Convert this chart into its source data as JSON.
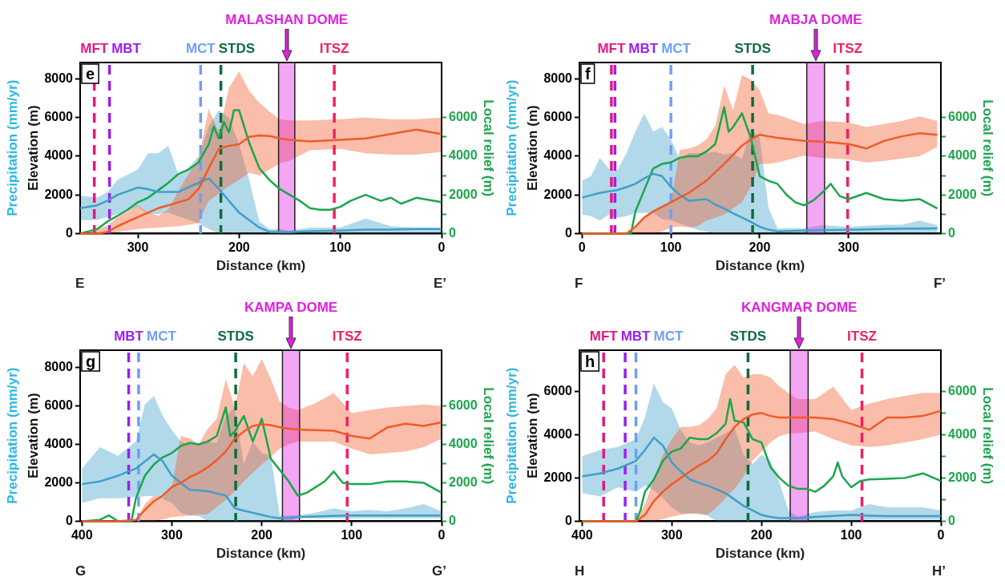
{
  "chart_data": [
    {
      "type": "line",
      "title": "e",
      "xlabel": "Distance (km)",
      "ylabel": "Elevation (m)",
      "y2label": "Local relief (m)",
      "annotations": [
        "Precipitation (mm/yr)",
        "E",
        "E’"
      ],
      "xlim": [
        357,
        0
      ],
      "xticks": [
        300,
        200,
        100,
        0
      ],
      "ylim": [
        0,
        8850
      ],
      "yticks": [
        0,
        2000,
        4000,
        6000,
        8000
      ],
      "y2lim": [
        0,
        8850
      ],
      "y2ticks": [
        0,
        {
          "value": 1000,
          "label": null
        },
        2000,
        {
          "value": 3000,
          "label": null
        },
        4000,
        {
          "value": 5000,
          "label": null
        },
        6000
      ],
      "marker": "none",
      "line_style": "solid",
      "ref_lines": [
        {
          "axis": "x",
          "value": 343,
          "label": "MFT",
          "color": "#e8177f",
          "line_style": "dashed"
        },
        {
          "axis": "x",
          "value": 328,
          "label": "MBT",
          "color": "#9a1ff2",
          "line_style": "dashed"
        },
        {
          "axis": "x",
          "value": 238,
          "label": "MCT",
          "color": "#6e9ff7",
          "line_style": "dashed"
        },
        {
          "axis": "x",
          "value": 218,
          "label": "STDS",
          "color": "#0e6b3c",
          "line_style": "dashed"
        },
        {
          "axis": "x",
          "value": 106,
          "label": "ITSZ",
          "color": "#f41d64",
          "line_style": "dashed"
        }
      ],
      "bands": [
        {
          "axis": "x",
          "from": 161,
          "to": 145,
          "label": "MALASHAN DOME",
          "color": "#e020e0"
        }
      ],
      "series": [
        {
          "color": "#f05a28",
          "axis": "y",
          "x": [
            357,
            340,
            330,
            320,
            300,
            290,
            280,
            270,
            260,
            250,
            240,
            230,
            220,
            210,
            200,
            190,
            180,
            170,
            160,
            150,
            130,
            100,
            75,
            50,
            25,
            0
          ],
          "values": [
            0,
            0,
            80,
            380,
            850,
            1080,
            1310,
            1460,
            1620,
            1770,
            2310,
            3380,
            4380,
            4540,
            4620,
            5000,
            5080,
            5050,
            4920,
            4850,
            4770,
            4850,
            4920,
            5150,
            5380,
            5150
          ],
          "lower": [
            0,
            0,
            0,
            80,
            230,
            280,
            310,
            350,
            380,
            450,
            540,
            1690,
            2080,
            2460,
            2770,
            3150,
            3000,
            3310,
            3620,
            3770,
            4310,
            4380,
            4150,
            4080,
            4080,
            4230
          ],
          "upper": [
            0,
            230,
            400,
            850,
            1460,
            1080,
            920,
            1230,
            2230,
            3080,
            3850,
            6460,
            5230,
            7540,
            8380,
            7380,
            6770,
            6310,
            5920,
            5850,
            5850,
            5920,
            6000,
            5920,
            5920,
            6000
          ]
        },
        {
          "color": "#3f9fc8",
          "axis": "y",
          "x": [
            357,
            340,
            330,
            320,
            300,
            290,
            280,
            270,
            260,
            250,
            240,
            230,
            220,
            210,
            200,
            190,
            180,
            170,
            160,
            150,
            130,
            100,
            75,
            50,
            25,
            0
          ],
          "values": [
            1310,
            1460,
            1700,
            2000,
            2380,
            2300,
            2150,
            2150,
            2150,
            2400,
            2620,
            2850,
            2310,
            1690,
            1080,
            690,
            310,
            80,
            80,
            80,
            120,
            150,
            200,
            200,
            230,
            230
          ],
          "lower": [
            690,
            700,
            850,
            1000,
            1400,
            1000,
            1000,
            1100,
            900,
            700,
            540,
            230,
            0,
            0,
            0,
            0,
            0,
            0,
            0,
            0,
            0,
            0,
            0,
            0,
            0,
            0
          ],
          "upper": [
            1970,
            1850,
            2150,
            2770,
            3310,
            4150,
            4150,
            4540,
            3080,
            3380,
            4000,
            5540,
            6380,
            6000,
            4620,
            2770,
            620,
            230,
            230,
            150,
            310,
            310,
            770,
            380,
            310,
            310
          ]
        },
        {
          "color": "#1aa64b",
          "axis": "y2",
          "x": [
            357,
            340,
            330,
            320,
            310,
            300,
            290,
            280,
            270,
            260,
            250,
            240,
            230,
            225,
            220,
            215,
            210,
            205,
            200,
            195,
            190,
            180,
            170,
            160,
            150,
            140,
            130,
            120,
            110,
            100,
            90,
            75,
            60,
            50,
            40,
            25,
            0
          ],
          "values": [
            0,
            230,
            620,
            920,
            1230,
            1620,
            1850,
            2230,
            2620,
            3080,
            3310,
            3690,
            4620,
            5540,
            4920,
            5770,
            5230,
            6380,
            6380,
            5540,
            4690,
            3380,
            2770,
            2310,
            2000,
            1690,
            1310,
            1230,
            1230,
            1380,
            1690,
            2000,
            1690,
            1850,
            1540,
            1850,
            1620
          ]
        }
      ]
    },
    {
      "type": "line",
      "title": "f",
      "xlabel": "Distance (km)",
      "ylabel": "Elevation (m)",
      "y2label": "Local relief (m)",
      "annotations": [
        "Precipitation (mm/yr)",
        "F",
        "F’"
      ],
      "xlim": [
        -3,
        404
      ],
      "xticks": [
        0,
        100,
        200,
        300
      ],
      "ylim": [
        0,
        8850
      ],
      "yticks": [
        0,
        2000,
        4000,
        6000,
        8000
      ],
      "y2lim": [
        0,
        8850
      ],
      "y2ticks": [
        0,
        {
          "value": 1000,
          "label": null
        },
        2000,
        {
          "value": 3000,
          "label": null
        },
        4000,
        {
          "value": 5000,
          "label": null
        },
        6000
      ],
      "marker": "none",
      "line_style": "solid",
      "ref_lines": [
        {
          "axis": "x",
          "value": 33,
          "label": "MFT",
          "color": "#e8177f",
          "line_style": "dashed"
        },
        {
          "axis": "x",
          "value": 37,
          "label": "MBT",
          "color": "#9a1ff2",
          "line_style": "dashed"
        },
        {
          "axis": "x",
          "value": 100,
          "label": "MCT",
          "color": "#6e9ff7",
          "line_style": "dashed"
        },
        {
          "axis": "x",
          "value": 192,
          "label": "STDS",
          "color": "#0e6b3c",
          "line_style": "dashed"
        },
        {
          "axis": "x",
          "value": 299,
          "label": "ITSZ",
          "color": "#f41d64",
          "line_style": "dashed"
        }
      ],
      "bands": [
        {
          "axis": "x",
          "from": 253,
          "to": 273,
          "label": "MABJA DOME",
          "color": "#e020e0"
        }
      ],
      "series": [
        {
          "color": "#f05a28",
          "axis": "y",
          "x": [
            0,
            10,
            20,
            30,
            40,
            50,
            60,
            70,
            80,
            90,
            100,
            110,
            120,
            130,
            140,
            150,
            160,
            170,
            180,
            190,
            200,
            210,
            220,
            250,
            270,
            300,
            320,
            340,
            360,
            380,
            400
          ],
          "values": [
            0,
            0,
            0,
            0,
            0,
            0,
            350,
            830,
            1140,
            1380,
            1620,
            1860,
            2100,
            2420,
            2730,
            3170,
            3600,
            4080,
            4550,
            4870,
            5110,
            5030,
            4950,
            4800,
            4750,
            4630,
            4400,
            4790,
            5030,
            5190,
            5110
          ],
          "lower": [
            0,
            0,
            0,
            0,
            0,
            0,
            0,
            0,
            0,
            100,
            320,
            370,
            320,
            380,
            670,
            820,
            980,
            1300,
            1620,
            2410,
            3600,
            3600,
            3680,
            4030,
            3920,
            3840,
            3680,
            3760,
            3880,
            4000,
            4480
          ],
          "upper": [
            0,
            0,
            0,
            0,
            0,
            0,
            350,
            830,
            1140,
            1380,
            1620,
            4320,
            4400,
            4550,
            4870,
            5590,
            7650,
            6380,
            8200,
            7970,
            7410,
            6220,
            6140,
            5670,
            5820,
            5750,
            5510,
            5670,
            5820,
            6060,
            5820
          ]
        },
        {
          "color": "#3f9fc8",
          "axis": "y",
          "x": [
            0,
            10,
            20,
            30,
            40,
            50,
            60,
            70,
            80,
            90,
            100,
            110,
            120,
            130,
            140,
            150,
            160,
            170,
            180,
            190,
            200,
            210,
            220,
            250,
            270,
            300,
            320,
            340,
            360,
            380,
            400
          ],
          "values": [
            1860,
            1980,
            2100,
            2180,
            2250,
            2400,
            2570,
            2850,
            3090,
            2970,
            2410,
            2000,
            1700,
            1740,
            1780,
            1500,
            1300,
            1050,
            830,
            600,
            350,
            200,
            110,
            150,
            170,
            190,
            210,
            230,
            250,
            260,
            270
          ],
          "lower": [
            980,
            900,
            670,
            980,
            830,
            900,
            1060,
            1060,
            1060,
            750,
            670,
            510,
            350,
            190,
            100,
            0,
            0,
            0,
            0,
            0,
            0,
            0,
            0,
            0,
            0,
            0,
            0,
            0,
            0,
            0,
            30
          ],
          "upper": [
            2730,
            2970,
            3920,
            3360,
            3290,
            4160,
            5270,
            6220,
            5270,
            5510,
            4870,
            3840,
            4160,
            4160,
            4160,
            4240,
            4080,
            4160,
            3840,
            5430,
            4950,
            1300,
            270,
            270,
            430,
            350,
            400,
            450,
            450,
            670,
            430
          ]
        },
        {
          "color": "#1aa64b",
          "axis": "y2",
          "x": [
            0,
            55,
            60,
            70,
            80,
            90,
            100,
            110,
            120,
            130,
            140,
            150,
            160,
            165,
            170,
            180,
            190,
            200,
            210,
            220,
            230,
            240,
            250,
            260,
            270,
            280,
            290,
            300,
            320,
            340,
            360,
            380,
            400
          ],
          "values": [
            0,
            0,
            1140,
            2250,
            3360,
            3600,
            3680,
            3920,
            4000,
            4000,
            4240,
            4630,
            6540,
            5270,
            5510,
            6220,
            4950,
            2970,
            2730,
            2570,
            2020,
            1620,
            1460,
            1700,
            2100,
            2570,
            1940,
            1780,
            2100,
            1780,
            1700,
            1780,
            1300
          ]
        }
      ]
    },
    {
      "type": "line",
      "title": "g",
      "xlabel": "Distance (km)",
      "ylabel": "Elevation (m)",
      "y2label": "Local relief (m)",
      "annotations": [
        "Precipitation (mm/yr)",
        "G",
        "G’"
      ],
      "xlim": [
        402,
        0
      ],
      "xticks": [
        400,
        300,
        200,
        100,
        0
      ],
      "ylim": [
        0,
        8900
      ],
      "yticks": [
        0,
        2000,
        4000,
        6000,
        8000
      ],
      "y2lim": [
        0,
        8900
      ],
      "y2ticks": [
        0,
        {
          "value": 1000,
          "label": null
        },
        2000,
        {
          "value": 3000,
          "label": null
        },
        4000,
        {
          "value": 5000,
          "label": null
        },
        6000
      ],
      "marker": "none",
      "line_style": "solid",
      "ref_lines": [
        {
          "axis": "x",
          "value": 348,
          "label": "MBT",
          "color": "#9a1ff2",
          "line_style": "dashed"
        },
        {
          "axis": "x",
          "value": 337,
          "label": "MCT",
          "color": "#6e9ff7",
          "line_style": "dashed"
        },
        {
          "axis": "x",
          "value": 229,
          "label": "STDS",
          "color": "#0e6b3c",
          "line_style": "dashed"
        },
        {
          "axis": "x",
          "value": 105,
          "label": "ITSZ",
          "color": "#f41d64",
          "line_style": "dashed"
        }
      ],
      "bands": [
        {
          "axis": "x",
          "from": 177,
          "to": 158,
          "label": "KAMPA DOME",
          "color": "#e020e0"
        }
      ],
      "series": [
        {
          "color": "#f05a28",
          "axis": "y",
          "x": [
            400,
            380,
            360,
            340,
            330,
            320,
            310,
            300,
            290,
            280,
            270,
            260,
            250,
            240,
            230,
            220,
            210,
            200,
            190,
            180,
            170,
            160,
            140,
            120,
            100,
            80,
            60,
            40,
            20,
            0
          ],
          "values": [
            0,
            0,
            0,
            70,
            590,
            1040,
            1330,
            1780,
            2000,
            2300,
            2520,
            2810,
            3180,
            3630,
            4300,
            4670,
            4960,
            5040,
            5000,
            4890,
            4810,
            4770,
            4740,
            4710,
            4440,
            4300,
            4890,
            5070,
            4960,
            5150
          ],
          "lower": [
            0,
            0,
            0,
            0,
            0,
            0,
            100,
            220,
            260,
            300,
            340,
            370,
            740,
            1110,
            1560,
            2070,
            2520,
            2960,
            3330,
            3780,
            4000,
            4150,
            4150,
            4150,
            3780,
            3480,
            3550,
            3630,
            3850,
            4300
          ],
          "upper": [
            0,
            0,
            0,
            70,
            890,
            1330,
            1190,
            1780,
            4440,
            4300,
            4000,
            4810,
            5330,
            7410,
            5920,
            8220,
            7550,
            8440,
            7410,
            6220,
            5920,
            5780,
            6150,
            6670,
            5630,
            5780,
            5920,
            6000,
            6070,
            6000
          ]
        },
        {
          "color": "#3f9fc8",
          "axis": "y",
          "x": [
            400,
            380,
            360,
            340,
            330,
            320,
            310,
            300,
            290,
            280,
            270,
            260,
            250,
            240,
            230,
            220,
            210,
            200,
            190,
            180,
            170,
            160,
            140,
            120,
            100,
            80,
            60,
            40,
            20,
            0
          ],
          "values": [
            1930,
            2070,
            2370,
            2740,
            3110,
            3480,
            3110,
            2370,
            2000,
            1630,
            1600,
            1560,
            1450,
            1330,
            670,
            550,
            440,
            330,
            220,
            150,
            180,
            220,
            250,
            280,
            300,
            300,
            300,
            300,
            300,
            300
          ],
          "lower": [
            960,
            1190,
            1190,
            1260,
            1300,
            1330,
            1150,
            960,
            440,
            300,
            270,
            0,
            0,
            0,
            0,
            0,
            0,
            0,
            0,
            0,
            0,
            150,
            150,
            150,
            150,
            150,
            150,
            150,
            150,
            150
          ],
          "upper": [
            2740,
            3850,
            3410,
            4150,
            6070,
            6520,
            5480,
            4740,
            4150,
            4000,
            4000,
            4150,
            4070,
            5480,
            5920,
            2960,
            4150,
            3550,
            3410,
            300,
            300,
            300,
            440,
            670,
            520,
            590,
            520,
            670,
            890,
            520
          ]
        },
        {
          "color": "#1aa64b",
          "axis": "y2",
          "x": [
            400,
            380,
            370,
            360,
            345,
            340,
            330,
            320,
            310,
            300,
            290,
            280,
            270,
            260,
            250,
            240,
            235,
            230,
            220,
            210,
            200,
            190,
            180,
            170,
            160,
            150,
            130,
            120,
            110,
            100,
            80,
            60,
            40,
            20,
            0
          ],
          "values": [
            0,
            70,
            300,
            0,
            0,
            1190,
            2370,
            2960,
            3330,
            3550,
            3920,
            4070,
            4000,
            4150,
            4440,
            5920,
            4440,
            4670,
            5480,
            4150,
            5330,
            3260,
            2670,
            2070,
            1330,
            1480,
            2070,
            2590,
            2000,
            1930,
            1930,
            2070,
            2070,
            2000,
            1480
          ]
        }
      ]
    },
    {
      "type": "line",
      "title": "h",
      "xlabel": "Distance (km)",
      "ylabel": "Elevation (m)",
      "y2label": "Local relief (m)",
      "annotations": [
        "Precipitation (mm/yr)",
        "H",
        "H’"
      ],
      "xlim": [
        403,
        0
      ],
      "xticks": [
        400,
        300,
        200,
        100,
        0
      ],
      "ylim": [
        0,
        7900
      ],
      "yticks": [
        0,
        2000,
        4000,
        6000
      ],
      "y2lim": [
        0,
        7900
      ],
      "y2ticks": [
        0,
        {
          "value": 1000,
          "label": null
        },
        2000,
        {
          "value": 3000,
          "label": null
        },
        4000,
        {
          "value": 5000,
          "label": null
        },
        6000
      ],
      "marker": "none",
      "line_style": "solid",
      "ref_lines": [
        {
          "axis": "x",
          "value": 376,
          "label": "MFT",
          "color": "#e8177f",
          "line_style": "dashed"
        },
        {
          "axis": "x",
          "value": 352,
          "label": "MBT",
          "color": "#9a1ff2",
          "line_style": "dashed"
        },
        {
          "axis": "x",
          "value": 340,
          "label": "MCT",
          "color": "#6e9ff7",
          "line_style": "dashed"
        },
        {
          "axis": "x",
          "value": 215,
          "label": "STDS",
          "color": "#0e6b3c",
          "line_style": "dashed"
        },
        {
          "axis": "x",
          "value": 88,
          "label": "ITSZ",
          "color": "#f41d64",
          "line_style": "dashed"
        }
      ],
      "bands": [
        {
          "axis": "x",
          "from": 168,
          "to": 148,
          "label": "KANGMAR DOME",
          "color": "#e020e0"
        }
      ],
      "series": [
        {
          "color": "#f05a28",
          "axis": "y",
          "x": [
            400,
            380,
            360,
            340,
            330,
            320,
            310,
            300,
            290,
            280,
            270,
            260,
            250,
            240,
            230,
            220,
            210,
            200,
            190,
            180,
            170,
            160,
            140,
            120,
            100,
            80,
            60,
            40,
            20,
            0
          ],
          "values": [
            0,
            0,
            0,
            0,
            290,
            930,
            1360,
            1710,
            2000,
            2290,
            2570,
            2790,
            3140,
            3790,
            4360,
            4720,
            4930,
            5000,
            4860,
            4790,
            4790,
            4790,
            4790,
            4720,
            4500,
            4220,
            4790,
            4790,
            4860,
            5100
          ],
          "lower": [
            0,
            0,
            0,
            0,
            0,
            0,
            100,
            210,
            290,
            360,
            330,
            300,
            640,
            1070,
            1500,
            2070,
            2790,
            3220,
            3640,
            3930,
            4040,
            4070,
            4140,
            3790,
            3500,
            3430,
            3500,
            3640,
            3790,
            4000
          ],
          "upper": [
            0,
            0,
            0,
            0,
            790,
            1930,
            3070,
            3790,
            4360,
            4360,
            4430,
            4720,
            5220,
            6790,
            7220,
            6640,
            6790,
            6790,
            6640,
            6220,
            5930,
            5640,
            5640,
            6220,
            5140,
            5430,
            5640,
            5790,
            5930,
            5930
          ]
        },
        {
          "color": "#3f9fc8",
          "axis": "y",
          "x": [
            400,
            380,
            360,
            340,
            330,
            320,
            310,
            300,
            290,
            280,
            270,
            260,
            250,
            240,
            230,
            220,
            210,
            200,
            190,
            180,
            170,
            160,
            140,
            120,
            100,
            80,
            60,
            40,
            20,
            0
          ],
          "values": [
            2070,
            2210,
            2430,
            2790,
            3290,
            3860,
            3500,
            2710,
            2300,
            1930,
            1780,
            1640,
            1470,
            1290,
            1000,
            710,
            500,
            290,
            200,
            140,
            140,
            140,
            200,
            250,
            290,
            260,
            240,
            240,
            240,
            240
          ],
          "lower": [
            1290,
            1140,
            1570,
            1360,
            1640,
            1430,
            1070,
            640,
            360,
            360,
            360,
            250,
            0,
            0,
            0,
            0,
            0,
            0,
            0,
            0,
            0,
            0,
            0,
            0,
            0,
            70,
            70,
            70,
            70,
            70
          ],
          "upper": [
            3000,
            3290,
            3430,
            3790,
            4790,
            6360,
            5500,
            5210,
            4220,
            3640,
            3500,
            3640,
            3860,
            4070,
            4290,
            3070,
            2640,
            3070,
            2790,
            1790,
            500,
            210,
            430,
            500,
            500,
            790,
            640,
            640,
            640,
            500
          ]
        },
        {
          "color": "#1aa64b",
          "axis": "y2",
          "x": [
            400,
            340,
            335,
            330,
            320,
            310,
            300,
            290,
            280,
            270,
            260,
            250,
            240,
            235,
            230,
            220,
            210,
            200,
            190,
            180,
            170,
            160,
            150,
            140,
            130,
            120,
            115,
            110,
            100,
            90,
            80,
            60,
            40,
            20,
            0
          ],
          "values": [
            0,
            0,
            500,
            1360,
            1930,
            2790,
            3220,
            3360,
            3860,
            3790,
            3790,
            4070,
            4500,
            5640,
            4640,
            4570,
            3790,
            3640,
            2500,
            2000,
            1640,
            1500,
            1500,
            1360,
            1640,
            2070,
            2710,
            2070,
            1570,
            1860,
            1930,
            1960,
            2000,
            2210,
            1860
          ]
        }
      ]
    }
  ]
}
